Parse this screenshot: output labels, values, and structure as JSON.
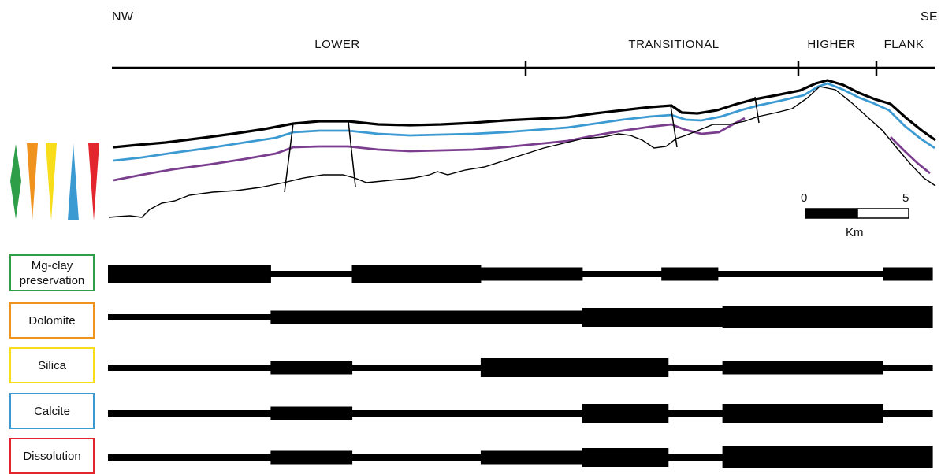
{
  "orientation": {
    "left": "NW",
    "right": "SE"
  },
  "zones": [
    {
      "label": "LOWER",
      "start_km": 0,
      "end_km": 18.5
    },
    {
      "label": "TRANSITIONAL",
      "start_km": 18.5,
      "end_km": 31
    },
    {
      "label": "HIGHER",
      "start_km": 31,
      "end_km": 34
    },
    {
      "label": "FLANK",
      "start_km": 34,
      "end_km": 36.5
    }
  ],
  "scale_bar": {
    "start_label": "0",
    "end_label": "5",
    "unit": "Km",
    "length_km": 5
  },
  "colors": {
    "mg_clay": "#2e9e48",
    "dolomite": "#f0921e",
    "silica": "#f7dd1a",
    "calcite": "#3c9ad3",
    "dissolution": "#e3262d",
    "purple_horizon": "#7b3e8e",
    "text": "#111111"
  },
  "legend_triangles": [
    {
      "process": "Mg-clay preservation",
      "color_key": "mg_clay",
      "shape": "diamond"
    },
    {
      "process": "Dolomite",
      "color_key": "dolomite",
      "shape": "triangle-down"
    },
    {
      "process": "Silica",
      "color_key": "silica",
      "shape": "triangle-down"
    },
    {
      "process": "Calcite",
      "color_key": "calcite",
      "shape": "triangle-up"
    },
    {
      "process": "Dissolution",
      "color_key": "dissolution",
      "shape": "triangle-down"
    }
  ],
  "processes": [
    {
      "label": "Mg-clay preservation",
      "color_key": "mg_clay",
      "segments": [
        {
          "x_km": [
            0,
            7.2
          ],
          "intensity": "high"
        },
        {
          "x_km": [
            7.2,
            10.8
          ],
          "intensity": "low"
        },
        {
          "x_km": [
            10.8,
            16.5
          ],
          "intensity": "high"
        },
        {
          "x_km": [
            16.5,
            21
          ],
          "intensity": "medium"
        },
        {
          "x_km": [
            21,
            24.5
          ],
          "intensity": "low"
        },
        {
          "x_km": [
            24.5,
            27
          ],
          "intensity": "medium"
        },
        {
          "x_km": [
            27,
            34.3
          ],
          "intensity": "low"
        },
        {
          "x_km": [
            34.3,
            36.5
          ],
          "intensity": "medium"
        }
      ]
    },
    {
      "label": "Dolomite",
      "color_key": "dolomite",
      "segments": [
        {
          "x_km": [
            0,
            7.2
          ],
          "intensity": "low"
        },
        {
          "x_km": [
            7.2,
            21
          ],
          "intensity": "medium"
        },
        {
          "x_km": [
            21,
            27.2
          ],
          "intensity": "high"
        },
        {
          "x_km": [
            27.2,
            36.5
          ],
          "intensity": "very_high"
        }
      ]
    },
    {
      "label": "Silica",
      "color_key": "silica",
      "segments": [
        {
          "x_km": [
            0,
            7.2
          ],
          "intensity": "low"
        },
        {
          "x_km": [
            7.2,
            10.8
          ],
          "intensity": "medium"
        },
        {
          "x_km": [
            10.8,
            16.5
          ],
          "intensity": "low"
        },
        {
          "x_km": [
            16.5,
            24.8
          ],
          "intensity": "high"
        },
        {
          "x_km": [
            24.8,
            27.2
          ],
          "intensity": "low"
        },
        {
          "x_km": [
            27.2,
            34.3
          ],
          "intensity": "medium"
        },
        {
          "x_km": [
            34.3,
            36.5
          ],
          "intensity": "low"
        }
      ]
    },
    {
      "label": "Calcite",
      "color_key": "calcite",
      "segments": [
        {
          "x_km": [
            0,
            7.2
          ],
          "intensity": "low"
        },
        {
          "x_km": [
            7.2,
            10.8
          ],
          "intensity": "medium"
        },
        {
          "x_km": [
            10.8,
            21
          ],
          "intensity": "low"
        },
        {
          "x_km": [
            21,
            24.8
          ],
          "intensity": "high"
        },
        {
          "x_km": [
            24.8,
            27.2
          ],
          "intensity": "low"
        },
        {
          "x_km": [
            27.2,
            34.3
          ],
          "intensity": "high"
        },
        {
          "x_km": [
            34.3,
            36.5
          ],
          "intensity": "low"
        }
      ]
    },
    {
      "label": "Dissolution",
      "color_key": "dissolution",
      "segments": [
        {
          "x_km": [
            0,
            7.2
          ],
          "intensity": "low"
        },
        {
          "x_km": [
            7.2,
            10.8
          ],
          "intensity": "medium"
        },
        {
          "x_km": [
            10.8,
            16.5
          ],
          "intensity": "low"
        },
        {
          "x_km": [
            16.5,
            21
          ],
          "intensity": "medium"
        },
        {
          "x_km": [
            21,
            24.8
          ],
          "intensity": "high"
        },
        {
          "x_km": [
            24.8,
            27.2
          ],
          "intensity": "low"
        },
        {
          "x_km": [
            27.2,
            36.5
          ],
          "intensity": "very_high"
        }
      ]
    }
  ]
}
